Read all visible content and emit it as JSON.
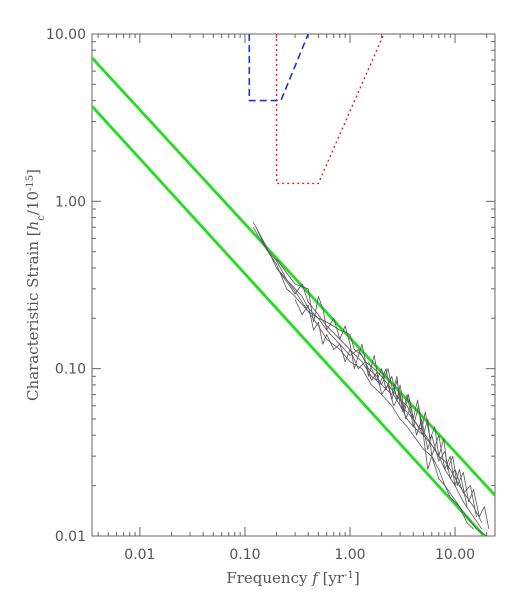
{
  "chart_data": {
    "type": "line",
    "x_scale": "log",
    "y_scale": "log",
    "xlim": [
      0.0035,
      24
    ],
    "ylim": [
      0.01,
      10
    ],
    "x_ticks": [
      {
        "value": 0.01,
        "label": "0.01"
      },
      {
        "value": 0.1,
        "label": "0.10"
      },
      {
        "value": 1,
        "label": "1.00"
      },
      {
        "value": 10,
        "label": "10.00"
      }
    ],
    "y_ticks": [
      {
        "value": 0.01,
        "label": "0.01"
      },
      {
        "value": 0.1,
        "label": "0.10"
      },
      {
        "value": 1,
        "label": "1.00"
      },
      {
        "value": 10,
        "label": "10.00"
      }
    ],
    "xlabel": {
      "pre": "Frequency ",
      "var": "f",
      "post": " [yr",
      "exp": "-1",
      "close": "]"
    },
    "ylabel": {
      "pre": "Characteristic Strain [",
      "var": "h",
      "sub": "c",
      "mid": "/10",
      "exp": "-15",
      "close": "]"
    },
    "grid": false,
    "legend": "none",
    "colors": {
      "noise": "#555555",
      "fit": "#22dd22",
      "blue_curve": "#2233cc",
      "red_curve": "#dd2222",
      "axis": "#666666"
    },
    "series": [
      {
        "style": "dashed",
        "color": "#2233cc",
        "points": [
          [
            0.11,
            10
          ],
          [
            0.11,
            4.0
          ],
          [
            0.22,
            4.0
          ],
          [
            0.4,
            10
          ]
        ]
      },
      {
        "style": "dotted",
        "color": "#dd2222",
        "points": [
          [
            0.2,
            10
          ],
          [
            0.2,
            1.28
          ],
          [
            0.5,
            1.28
          ],
          [
            2.1,
            10
          ]
        ]
      },
      {
        "style": "solid",
        "color": "#22dd22",
        "points": [
          [
            0.0035,
            7.2
          ],
          [
            24,
            0.0175
          ]
        ]
      },
      {
        "style": "solid",
        "color": "#22dd22",
        "points": [
          [
            0.0035,
            3.7
          ],
          [
            24,
            0.0085
          ]
        ]
      },
      {
        "style": "thin",
        "color": "#555555",
        "points": [
          [
            0.12,
            0.7
          ],
          [
            0.15,
            0.55
          ],
          [
            0.2,
            0.42
          ],
          [
            0.25,
            0.3
          ],
          [
            0.3,
            0.27
          ],
          [
            0.4,
            0.22
          ],
          [
            0.5,
            0.18
          ],
          [
            0.6,
            0.15
          ],
          [
            0.8,
            0.13
          ],
          [
            1,
            0.11
          ],
          [
            1.3,
            0.1
          ],
          [
            1.6,
            0.08
          ],
          [
            2,
            0.07
          ],
          [
            2.5,
            0.06
          ],
          [
            3,
            0.05
          ],
          [
            3.5,
            0.045
          ],
          [
            4,
            0.04
          ],
          [
            5,
            0.033
          ],
          [
            6,
            0.03
          ],
          [
            7,
            0.025
          ],
          [
            8,
            0.02
          ],
          [
            9,
            0.018
          ],
          [
            11,
            0.015
          ],
          [
            13,
            0.013
          ],
          [
            16,
            0.011
          ],
          [
            20,
            0.01
          ]
        ]
      },
      {
        "style": "thin",
        "color": "#555555",
        "points": [
          [
            0.12,
            0.75
          ],
          [
            0.15,
            0.58
          ],
          [
            0.2,
            0.4
          ],
          [
            0.25,
            0.33
          ],
          [
            0.3,
            0.28
          ],
          [
            0.35,
            0.32
          ],
          [
            0.4,
            0.25
          ],
          [
            0.5,
            0.21
          ],
          [
            0.6,
            0.18
          ],
          [
            0.8,
            0.15
          ],
          [
            1,
            0.13
          ],
          [
            1.3,
            0.11
          ],
          [
            1.6,
            0.09
          ],
          [
            2,
            0.08
          ],
          [
            2.3,
            0.1
          ],
          [
            2.6,
            0.07
          ],
          [
            3,
            0.06
          ],
          [
            3.5,
            0.055
          ],
          [
            4,
            0.05
          ],
          [
            5,
            0.04
          ],
          [
            6,
            0.035
          ],
          [
            7,
            0.03
          ],
          [
            8,
            0.025
          ],
          [
            10,
            0.02
          ],
          [
            12,
            0.016
          ],
          [
            15,
            0.013
          ],
          [
            18,
            0.011
          ]
        ]
      },
      {
        "style": "thin",
        "color": "#555555",
        "points": [
          [
            0.13,
            0.68
          ],
          [
            0.16,
            0.52
          ],
          [
            0.2,
            0.44
          ],
          [
            0.25,
            0.34
          ],
          [
            0.3,
            0.3
          ],
          [
            0.35,
            0.27
          ],
          [
            0.4,
            0.23
          ],
          [
            0.5,
            0.2
          ],
          [
            0.6,
            0.17
          ],
          [
            0.8,
            0.14
          ],
          [
            1,
            0.12
          ],
          [
            1.2,
            0.13
          ],
          [
            1.4,
            0.11
          ],
          [
            1.7,
            0.1
          ],
          [
            2,
            0.09
          ],
          [
            2.5,
            0.075
          ],
          [
            3,
            0.065
          ],
          [
            3.5,
            0.06
          ],
          [
            4,
            0.05
          ],
          [
            4.5,
            0.045
          ],
          [
            5,
            0.042
          ],
          [
            6,
            0.035
          ],
          [
            7,
            0.03
          ],
          [
            8,
            0.028
          ],
          [
            9,
            0.025
          ],
          [
            11,
            0.02
          ],
          [
            13,
            0.017
          ],
          [
            15,
            0.015
          ],
          [
            18,
            0.012
          ]
        ]
      },
      {
        "style": "thin",
        "color": "#555555",
        "points": [
          [
            0.2,
            0.4
          ],
          [
            0.25,
            0.34
          ],
          [
            0.3,
            0.29
          ],
          [
            0.35,
            0.25
          ],
          [
            0.4,
            0.22
          ],
          [
            0.5,
            0.2
          ],
          [
            0.6,
            0.19
          ],
          [
            0.8,
            0.17
          ],
          [
            1,
            0.16
          ],
          [
            1.1,
            0.13
          ],
          [
            1.3,
            0.12
          ],
          [
            1.5,
            0.1
          ],
          [
            1.8,
            0.09
          ],
          [
            2,
            0.08
          ],
          [
            2.5,
            0.07
          ],
          [
            2.8,
            0.09
          ],
          [
            3,
            0.06
          ],
          [
            3.5,
            0.05
          ],
          [
            4,
            0.045
          ],
          [
            5,
            0.04
          ],
          [
            5.5,
            0.025
          ],
          [
            6,
            0.03
          ],
          [
            7,
            0.022
          ],
          [
            8,
            0.02
          ],
          [
            9,
            0.017
          ],
          [
            11,
            0.015
          ],
          [
            13,
            0.012
          ],
          [
            15,
            0.011
          ]
        ]
      },
      {
        "style": "thin",
        "color": "#555555",
        "points": [
          [
            0.2,
            0.45
          ],
          [
            0.3,
            0.32
          ],
          [
            0.4,
            0.3
          ],
          [
            0.45,
            0.19
          ],
          [
            0.5,
            0.27
          ],
          [
            0.55,
            0.23
          ],
          [
            0.6,
            0.17
          ],
          [
            0.7,
            0.2
          ],
          [
            0.8,
            0.15
          ],
          [
            0.9,
            0.18
          ],
          [
            1,
            0.14
          ],
          [
            1.1,
            0.1
          ],
          [
            1.3,
            0.14
          ],
          [
            1.5,
            0.09
          ],
          [
            1.7,
            0.12
          ],
          [
            1.9,
            0.08
          ],
          [
            2.2,
            0.1
          ],
          [
            2.5,
            0.065
          ],
          [
            2.8,
            0.085
          ],
          [
            3.2,
            0.055
          ],
          [
            3.5,
            0.07
          ],
          [
            4,
            0.045
          ],
          [
            4.5,
            0.06
          ],
          [
            5,
            0.04
          ],
          [
            5.5,
            0.05
          ],
          [
            6,
            0.03
          ],
          [
            7,
            0.04
          ],
          [
            8,
            0.025
          ],
          [
            9,
            0.03
          ],
          [
            10,
            0.02
          ],
          [
            11,
            0.025
          ],
          [
            13,
            0.015
          ]
        ]
      },
      {
        "style": "thin",
        "color": "#555555",
        "points": [
          [
            0.3,
            0.26
          ],
          [
            0.35,
            0.21
          ],
          [
            0.4,
            0.24
          ],
          [
            0.45,
            0.17
          ],
          [
            0.5,
            0.19
          ],
          [
            0.55,
            0.14
          ],
          [
            0.6,
            0.16
          ],
          [
            0.7,
            0.13
          ],
          [
            0.8,
            0.14
          ],
          [
            0.9,
            0.11
          ],
          [
            1,
            0.13
          ],
          [
            1.2,
            0.1
          ],
          [
            1.4,
            0.11
          ],
          [
            1.6,
            0.085
          ],
          [
            1.8,
            0.095
          ],
          [
            2,
            0.07
          ],
          [
            2.3,
            0.08
          ],
          [
            2.6,
            0.06
          ],
          [
            3,
            0.07
          ],
          [
            3.4,
            0.05
          ],
          [
            3.8,
            0.06
          ],
          [
            4.3,
            0.04
          ],
          [
            4.8,
            0.05
          ],
          [
            5.5,
            0.033
          ],
          [
            6,
            0.04
          ],
          [
            7,
            0.028
          ],
          [
            8,
            0.032
          ],
          [
            9,
            0.022
          ],
          [
            10,
            0.025
          ],
          [
            12,
            0.018
          ],
          [
            14,
            0.02
          ],
          [
            16,
            0.013
          ]
        ]
      },
      {
        "style": "thin",
        "color": "#555555",
        "points": [
          [
            1.5,
            0.11
          ],
          [
            1.8,
            0.085
          ],
          [
            2,
            0.1
          ],
          [
            2.2,
            0.075
          ],
          [
            2.5,
            0.09
          ],
          [
            2.8,
            0.065
          ],
          [
            3,
            0.08
          ],
          [
            3.3,
            0.055
          ],
          [
            3.6,
            0.07
          ],
          [
            4,
            0.05
          ],
          [
            4.4,
            0.065
          ],
          [
            4.8,
            0.043
          ],
          [
            5.2,
            0.055
          ],
          [
            5.8,
            0.038
          ],
          [
            6.4,
            0.045
          ],
          [
            7,
            0.03
          ],
          [
            7.8,
            0.038
          ],
          [
            8.5,
            0.025
          ],
          [
            9.5,
            0.03
          ],
          [
            10.5,
            0.02
          ],
          [
            12,
            0.024
          ],
          [
            13.5,
            0.016
          ],
          [
            15,
            0.019
          ],
          [
            17,
            0.013
          ],
          [
            19,
            0.015
          ],
          [
            21,
            0.011
          ]
        ]
      }
    ]
  }
}
